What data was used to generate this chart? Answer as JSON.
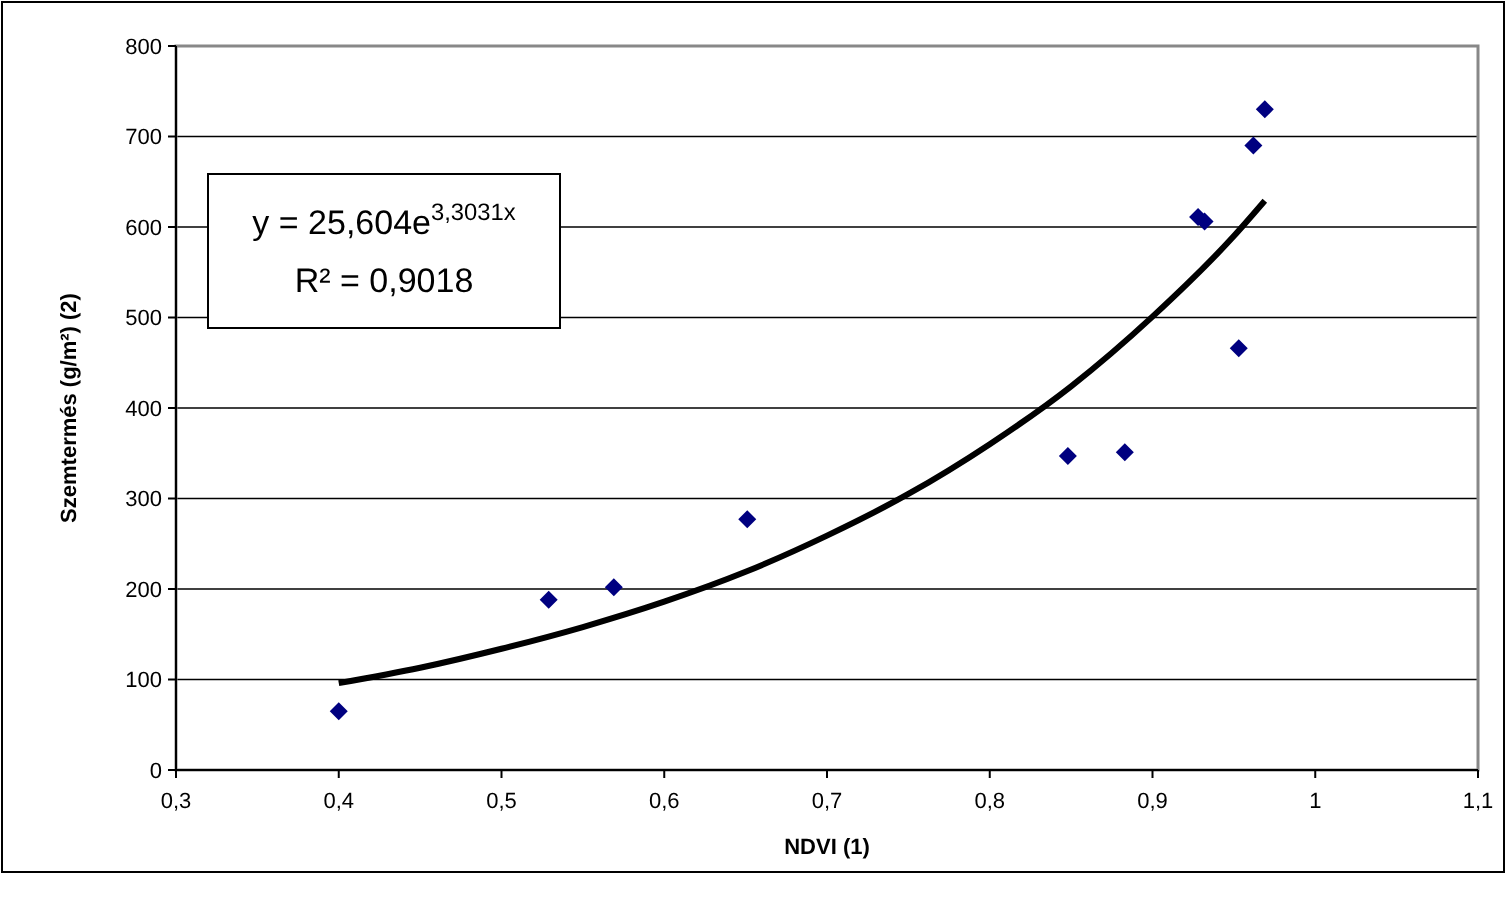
{
  "chart_data": {
    "type": "scatter",
    "xlabel": "NDVI (1)",
    "ylabel": "Szemtermés (g/m²) (2)",
    "xlim": [
      0.3,
      1.1
    ],
    "xticks": [
      {
        "value": 0.3,
        "label": "0,3"
      },
      {
        "value": 0.4,
        "label": "0,4"
      },
      {
        "value": 0.5,
        "label": "0,5"
      },
      {
        "value": 0.6,
        "label": "0,6"
      },
      {
        "value": 0.7,
        "label": "0,7"
      },
      {
        "value": 0.8,
        "label": "0,8"
      },
      {
        "value": 0.9,
        "label": "0,9"
      },
      {
        "value": 1,
        "label": "1"
      },
      {
        "value": 1.1,
        "label": "1,1"
      }
    ],
    "ylim": [
      0,
      800
    ],
    "yticks": [
      0,
      100,
      200,
      300,
      400,
      500,
      600,
      700,
      800
    ],
    "grid": "y",
    "marker": "diamond",
    "series": [
      {
        "color": "#000080",
        "x": [
          0.4,
          0.529,
          0.569,
          0.651,
          0.848,
          0.883,
          0.928,
          0.932,
          0.953,
          0.962,
          0.969
        ],
        "values": [
          65,
          188,
          202,
          277,
          347,
          351,
          611,
          606,
          466,
          690,
          730
        ]
      },
      {
        "type": "line",
        "color": "#000000",
        "marker": "none",
        "line_style": "solid",
        "x": [
          0.4,
          0.45,
          0.5,
          0.55,
          0.6,
          0.65,
          0.7,
          0.75,
          0.8,
          0.85,
          0.9,
          0.95,
          0.969
        ],
        "values": [
          96,
          113,
          134,
          158,
          186,
          219,
          259,
          305,
          360,
          424,
          501,
          590,
          629
        ]
      }
    ],
    "annotations": [
      "y = 25,604e$^{3,3031x}$",
      "R² = 0,9018"
    ]
  }
}
